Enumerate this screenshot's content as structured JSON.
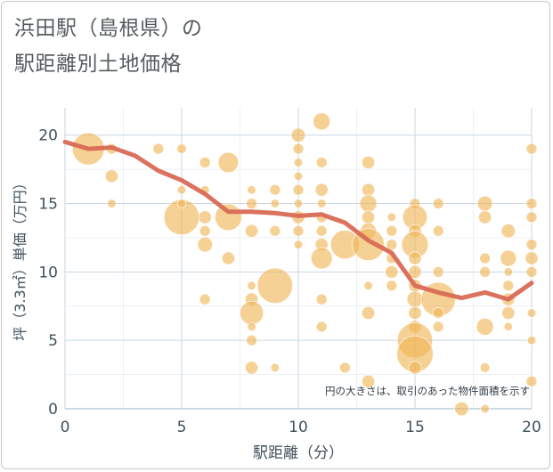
{
  "title": {
    "line1": "浜田駅（島根県）の",
    "line2": "駅距離別土地価格"
  },
  "chart_data": {
    "type": "scatter",
    "xlabel": "駅距離（分）",
    "ylabel": "坪（3.3㎡）単価（万円）",
    "xlim": [
      0,
      20
    ],
    "ylim": [
      0,
      22
    ],
    "xticks": [
      0,
      5,
      10,
      15,
      20
    ],
    "yticks": [
      0,
      5,
      10,
      15,
      20
    ],
    "grid": true,
    "annotation": "円の大きさは、取引のあった物件面積を示す",
    "colors": {
      "bubble": "#f0b455",
      "line": "#d96a55",
      "grid": "#c8d6e3",
      "text": "#40515e"
    },
    "series": [
      {
        "type": "bubble",
        "points": [
          {
            "x": 1,
            "y": 19,
            "s": 3
          },
          {
            "x": 2,
            "y": 19,
            "s": 1
          },
          {
            "x": 2,
            "y": 17,
            "s": 1.2
          },
          {
            "x": 2,
            "y": 15,
            "s": 0.8
          },
          {
            "x": 4,
            "y": 19,
            "s": 1
          },
          {
            "x": 5,
            "y": 19,
            "s": 0.9
          },
          {
            "x": 5,
            "y": 16,
            "s": 0.8
          },
          {
            "x": 5,
            "y": 14,
            "s": 3.3
          },
          {
            "x": 5,
            "y": 15,
            "s": 0.8
          },
          {
            "x": 6,
            "y": 18,
            "s": 1
          },
          {
            "x": 6,
            "y": 16,
            "s": 0.8
          },
          {
            "x": 6,
            "y": 14,
            "s": 1.2
          },
          {
            "x": 6,
            "y": 13,
            "s": 1
          },
          {
            "x": 6,
            "y": 12,
            "s": 1.4
          },
          {
            "x": 6,
            "y": 8,
            "s": 1
          },
          {
            "x": 7,
            "y": 18,
            "s": 1.9
          },
          {
            "x": 7,
            "y": 14,
            "s": 2.5
          },
          {
            "x": 7,
            "y": 11,
            "s": 1.2
          },
          {
            "x": 8,
            "y": 16,
            "s": 0.8
          },
          {
            "x": 8,
            "y": 15,
            "s": 1
          },
          {
            "x": 8,
            "y": 13,
            "s": 1.2
          },
          {
            "x": 8,
            "y": 9,
            "s": 0.8
          },
          {
            "x": 8,
            "y": 8,
            "s": 1.2
          },
          {
            "x": 8,
            "y": 7,
            "s": 2.2
          },
          {
            "x": 8,
            "y": 6,
            "s": 0.8
          },
          {
            "x": 8,
            "y": 5,
            "s": 1
          },
          {
            "x": 8,
            "y": 3,
            "s": 1.2
          },
          {
            "x": 9,
            "y": 16,
            "s": 1
          },
          {
            "x": 9,
            "y": 15,
            "s": 0.8
          },
          {
            "x": 9,
            "y": 13,
            "s": 1
          },
          {
            "x": 9,
            "y": 9,
            "s": 3.3
          },
          {
            "x": 9,
            "y": 3,
            "s": 0.8
          },
          {
            "x": 10,
            "y": 20,
            "s": 1.3
          },
          {
            "x": 10,
            "y": 19,
            "s": 1
          },
          {
            "x": 10,
            "y": 18,
            "s": 0.8
          },
          {
            "x": 10,
            "y": 17,
            "s": 0.8
          },
          {
            "x": 10,
            "y": 16,
            "s": 1
          },
          {
            "x": 10,
            "y": 15,
            "s": 0.8
          },
          {
            "x": 10,
            "y": 14,
            "s": 1.2
          },
          {
            "x": 10,
            "y": 13,
            "s": 1
          },
          {
            "x": 10,
            "y": 12,
            "s": 0.8
          },
          {
            "x": 11,
            "y": 21,
            "s": 1.6
          },
          {
            "x": 11,
            "y": 18,
            "s": 1
          },
          {
            "x": 11,
            "y": 16,
            "s": 1.2
          },
          {
            "x": 11,
            "y": 15,
            "s": 0.8
          },
          {
            "x": 11,
            "y": 14,
            "s": 1
          },
          {
            "x": 11,
            "y": 13,
            "s": 1
          },
          {
            "x": 11,
            "y": 12,
            "s": 1.2
          },
          {
            "x": 11,
            "y": 11,
            "s": 2
          },
          {
            "x": 11,
            "y": 8,
            "s": 1
          },
          {
            "x": 11,
            "y": 6,
            "s": 1
          },
          {
            "x": 12,
            "y": 12,
            "s": 2.7
          },
          {
            "x": 12,
            "y": 3,
            "s": 1
          },
          {
            "x": 13,
            "y": 18,
            "s": 1.2
          },
          {
            "x": 13,
            "y": 16,
            "s": 1.2
          },
          {
            "x": 13,
            "y": 15,
            "s": 1.6
          },
          {
            "x": 13,
            "y": 14,
            "s": 1.2
          },
          {
            "x": 13,
            "y": 13,
            "s": 1.5
          },
          {
            "x": 13,
            "y": 12,
            "s": 3
          },
          {
            "x": 13,
            "y": 9,
            "s": 0.8
          },
          {
            "x": 13,
            "y": 7,
            "s": 1.2
          },
          {
            "x": 13,
            "y": 2,
            "s": 1.2
          },
          {
            "x": 14,
            "y": 14,
            "s": 0.8
          },
          {
            "x": 14,
            "y": 13,
            "s": 1
          },
          {
            "x": 14,
            "y": 12,
            "s": 1
          },
          {
            "x": 14,
            "y": 11,
            "s": 1
          },
          {
            "x": 14,
            "y": 10,
            "s": 1.2
          },
          {
            "x": 14,
            "y": 9,
            "s": 1
          },
          {
            "x": 15,
            "y": 15,
            "s": 1
          },
          {
            "x": 15,
            "y": 14,
            "s": 2.3
          },
          {
            "x": 15,
            "y": 13,
            "s": 1.2
          },
          {
            "x": 15,
            "y": 12,
            "s": 2.5
          },
          {
            "x": 15,
            "y": 11,
            "s": 1.2
          },
          {
            "x": 15,
            "y": 10,
            "s": 1.2
          },
          {
            "x": 15,
            "y": 9,
            "s": 1.2
          },
          {
            "x": 15,
            "y": 8,
            "s": 1.5
          },
          {
            "x": 15,
            "y": 7,
            "s": 1.2
          },
          {
            "x": 15,
            "y": 6,
            "s": 1.2
          },
          {
            "x": 15,
            "y": 5,
            "s": 3.3
          },
          {
            "x": 15,
            "y": 4,
            "s": 3.4
          },
          {
            "x": 15,
            "y": 3,
            "s": 1.2
          },
          {
            "x": 16,
            "y": 15,
            "s": 1
          },
          {
            "x": 16,
            "y": 13,
            "s": 1
          },
          {
            "x": 16,
            "y": 10,
            "s": 1
          },
          {
            "x": 16,
            "y": 8,
            "s": 3.2
          },
          {
            "x": 16,
            "y": 7,
            "s": 1
          },
          {
            "x": 16,
            "y": 6,
            "s": 1
          },
          {
            "x": 17,
            "y": 0,
            "s": 1.3
          },
          {
            "x": 18,
            "y": 15,
            "s": 1.4
          },
          {
            "x": 18,
            "y": 14,
            "s": 1.2
          },
          {
            "x": 18,
            "y": 11,
            "s": 1
          },
          {
            "x": 18,
            "y": 10,
            "s": 1
          },
          {
            "x": 18,
            "y": 6,
            "s": 1.6
          },
          {
            "x": 18,
            "y": 3,
            "s": 0.9
          },
          {
            "x": 18,
            "y": 0,
            "s": 0.8
          },
          {
            "x": 19,
            "y": 13,
            "s": 1.3
          },
          {
            "x": 19,
            "y": 11,
            "s": 1.5
          },
          {
            "x": 19,
            "y": 10,
            "s": 0.8
          },
          {
            "x": 19,
            "y": 9,
            "s": 1
          },
          {
            "x": 19,
            "y": 8,
            "s": 1.2
          },
          {
            "x": 19,
            "y": 7,
            "s": 1.2
          },
          {
            "x": 19,
            "y": 6,
            "s": 0.8
          },
          {
            "x": 20,
            "y": 19,
            "s": 1
          },
          {
            "x": 20,
            "y": 15,
            "s": 1
          },
          {
            "x": 20,
            "y": 14,
            "s": 1
          },
          {
            "x": 20,
            "y": 12,
            "s": 1
          },
          {
            "x": 20,
            "y": 11,
            "s": 1.2
          },
          {
            "x": 20,
            "y": 10,
            "s": 1
          },
          {
            "x": 20,
            "y": 7,
            "s": 0.8
          },
          {
            "x": 20,
            "y": 5,
            "s": 0.8
          },
          {
            "x": 20,
            "y": 2,
            "s": 1
          }
        ]
      },
      {
        "type": "line",
        "points": [
          {
            "x": 0,
            "y": 19.5
          },
          {
            "x": 1,
            "y": 19
          },
          {
            "x": 2,
            "y": 19.1
          },
          {
            "x": 3,
            "y": 18.5
          },
          {
            "x": 4,
            "y": 17.4
          },
          {
            "x": 5,
            "y": 16.7
          },
          {
            "x": 6,
            "y": 15.7
          },
          {
            "x": 7,
            "y": 14.4
          },
          {
            "x": 8,
            "y": 14.4
          },
          {
            "x": 9,
            "y": 14.3
          },
          {
            "x": 10,
            "y": 14.1
          },
          {
            "x": 11,
            "y": 14.2
          },
          {
            "x": 12,
            "y": 13.6
          },
          {
            "x": 13,
            "y": 12.3
          },
          {
            "x": 14,
            "y": 11.4
          },
          {
            "x": 15,
            "y": 9
          },
          {
            "x": 16,
            "y": 8.5
          },
          {
            "x": 17,
            "y": 8.1
          },
          {
            "x": 18,
            "y": 8.5
          },
          {
            "x": 19,
            "y": 8
          },
          {
            "x": 20,
            "y": 9.2
          }
        ]
      }
    ]
  }
}
